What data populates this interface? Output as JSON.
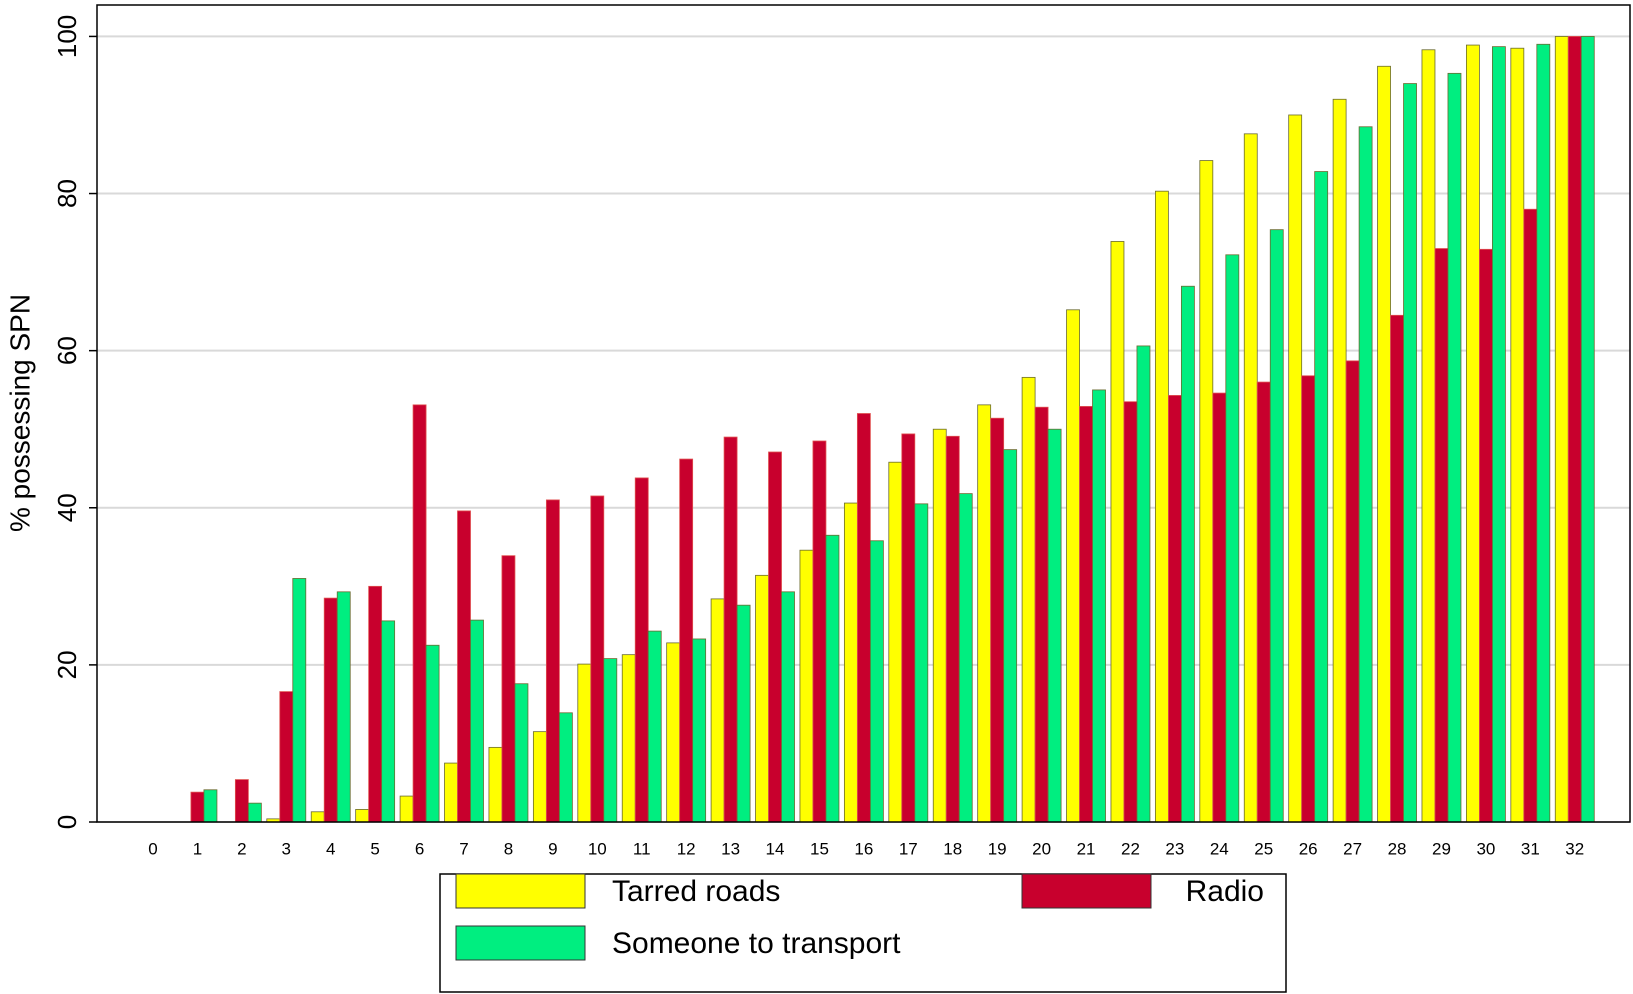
{
  "chart_data": {
    "type": "bar",
    "y_label": "% possessing SPN",
    "categories": [
      "0",
      "1",
      "2",
      "3",
      "4",
      "5",
      "6",
      "7",
      "8",
      "9",
      "10",
      "11",
      "12",
      "13",
      "14",
      "15",
      "16",
      "17",
      "18",
      "19",
      "20",
      "21",
      "22",
      "23",
      "24",
      "25",
      "26",
      "27",
      "28",
      "29",
      "30",
      "31",
      "32"
    ],
    "series": [
      {
        "name": "Tarred roads",
        "color": "#ffff00",
        "values": [
          0,
          0,
          0,
          0.4,
          1.3,
          1.6,
          3.3,
          7.5,
          9.5,
          11.5,
          20.1,
          21.3,
          22.8,
          28.4,
          31.4,
          34.6,
          40.6,
          45.8,
          50.0,
          53.1,
          56.6,
          65.2,
          73.9,
          80.3,
          84.2,
          87.6,
          90.0,
          92.0,
          96.2,
          98.3,
          98.9,
          98.5,
          100
        ]
      },
      {
        "name": "Radio",
        "color": "#c8002d",
        "values": [
          0,
          3.8,
          5.4,
          16.6,
          28.5,
          30.0,
          53.1,
          39.6,
          33.9,
          41.0,
          41.5,
          43.8,
          46.2,
          49.0,
          47.1,
          48.5,
          52.0,
          49.4,
          49.1,
          51.4,
          52.8,
          52.9,
          53.5,
          54.3,
          54.6,
          56.0,
          56.8,
          58.7,
          64.5,
          73.0,
          72.9,
          78.0,
          100
        ]
      },
      {
        "name": "Someone to transport",
        "color": "#00ee80",
        "values": [
          0,
          4.1,
          2.4,
          31.0,
          29.3,
          25.6,
          22.5,
          25.7,
          17.6,
          13.9,
          20.8,
          24.3,
          23.3,
          27.6,
          29.3,
          36.5,
          35.8,
          40.5,
          41.8,
          47.4,
          50.0,
          55.0,
          60.6,
          68.2,
          72.2,
          75.4,
          82.8,
          88.5,
          94.0,
          95.3,
          98.7,
          99.0,
          100
        ]
      }
    ],
    "ylim": [
      0,
      104
    ],
    "yticks": [
      0,
      20,
      40,
      60,
      80,
      100
    ],
    "grid": true,
    "legend": "bottom"
  }
}
